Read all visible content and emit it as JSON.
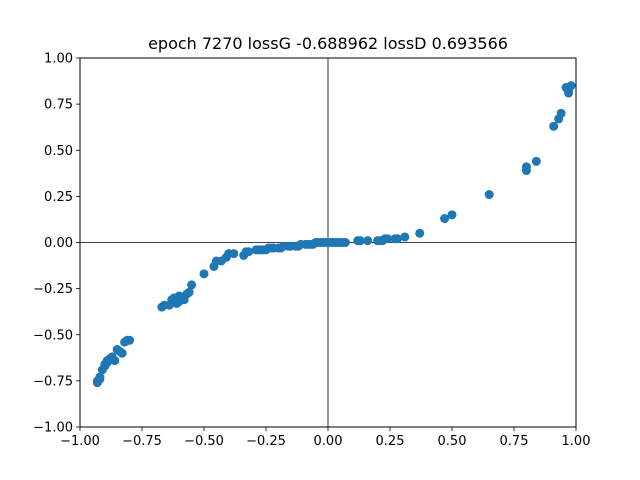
{
  "chart_data": {
    "type": "scatter",
    "title": "epoch 7270 lossG -0.688962 lossD 0.693566",
    "xlabel": "",
    "ylabel": "",
    "xlim": [
      -1.0,
      1.0
    ],
    "ylim": [
      -1.0,
      1.0
    ],
    "xticks": [
      -1.0,
      -0.75,
      -0.5,
      -0.25,
      0.0,
      0.25,
      0.5,
      0.75,
      1.0
    ],
    "yticks": [
      -1.0,
      -0.75,
      -0.5,
      -0.25,
      0.0,
      0.25,
      0.5,
      0.75,
      1.0
    ],
    "xtick_labels": [
      "−1.00",
      "−0.75",
      "−0.50",
      "−0.25",
      "0.00",
      "0.25",
      "0.50",
      "0.75",
      "1.00"
    ],
    "ytick_labels": [
      "−1.00",
      "−0.75",
      "−0.50",
      "−0.25",
      "0.00",
      "0.25",
      "0.50",
      "0.75",
      "1.00"
    ],
    "grid": false,
    "reference_lines": {
      "x": 0,
      "y": 0
    },
    "marker_color": "#1f77b4",
    "x": [
      -0.93,
      -0.93,
      -0.92,
      -0.92,
      -0.91,
      -0.9,
      -0.9,
      -0.89,
      -0.89,
      -0.88,
      -0.87,
      -0.86,
      -0.85,
      -0.84,
      -0.83,
      -0.82,
      -0.81,
      -0.8,
      -0.67,
      -0.66,
      -0.64,
      -0.63,
      -0.62,
      -0.61,
      -0.6,
      -0.6,
      -0.59,
      -0.58,
      -0.57,
      -0.56,
      -0.55,
      -0.5,
      -0.46,
      -0.45,
      -0.43,
      -0.41,
      -0.4,
      -0.38,
      -0.34,
      -0.33,
      -0.32,
      -0.29,
      -0.28,
      -0.27,
      -0.26,
      -0.25,
      -0.24,
      -0.23,
      -0.22,
      -0.2,
      -0.19,
      -0.18,
      -0.16,
      -0.15,
      -0.13,
      -0.12,
      -0.11,
      -0.09,
      -0.08,
      -0.07,
      -0.06,
      -0.05,
      -0.04,
      -0.03,
      -0.02,
      -0.01,
      0.0,
      0.01,
      0.02,
      0.03,
      0.04,
      0.05,
      0.06,
      0.07,
      0.12,
      0.13,
      0.16,
      0.2,
      0.21,
      0.22,
      0.23,
      0.24,
      0.27,
      0.28,
      0.31,
      0.37,
      0.47,
      0.5,
      0.65,
      0.8,
      0.8,
      0.84,
      0.91,
      0.93,
      0.94,
      0.96,
      0.97,
      0.97,
      0.98
    ],
    "y": [
      -0.76,
      -0.75,
      -0.74,
      -0.73,
      -0.69,
      -0.67,
      -0.66,
      -0.65,
      -0.64,
      -0.63,
      -0.62,
      -0.64,
      -0.58,
      -0.59,
      -0.6,
      -0.54,
      -0.53,
      -0.53,
      -0.35,
      -0.34,
      -0.34,
      -0.31,
      -0.3,
      -0.33,
      -0.32,
      -0.29,
      -0.3,
      -0.31,
      -0.28,
      -0.27,
      -0.23,
      -0.17,
      -0.13,
      -0.1,
      -0.1,
      -0.08,
      -0.06,
      -0.06,
      -0.07,
      -0.05,
      -0.05,
      -0.04,
      -0.04,
      -0.04,
      -0.04,
      -0.04,
      -0.03,
      -0.03,
      -0.03,
      -0.03,
      -0.03,
      -0.02,
      -0.02,
      -0.02,
      -0.02,
      -0.02,
      -0.01,
      -0.01,
      -0.01,
      -0.01,
      -0.01,
      0.0,
      0.0,
      0.0,
      0.0,
      0.0,
      0.0,
      0.0,
      0.0,
      0.0,
      0.0,
      0.0,
      0.0,
      0.0,
      0.01,
      0.01,
      0.01,
      0.01,
      0.01,
      0.01,
      0.02,
      0.02,
      0.02,
      0.02,
      0.03,
      0.05,
      0.13,
      0.15,
      0.26,
      0.39,
      0.41,
      0.44,
      0.63,
      0.67,
      0.7,
      0.84,
      0.81,
      0.83,
      0.85
    ]
  }
}
